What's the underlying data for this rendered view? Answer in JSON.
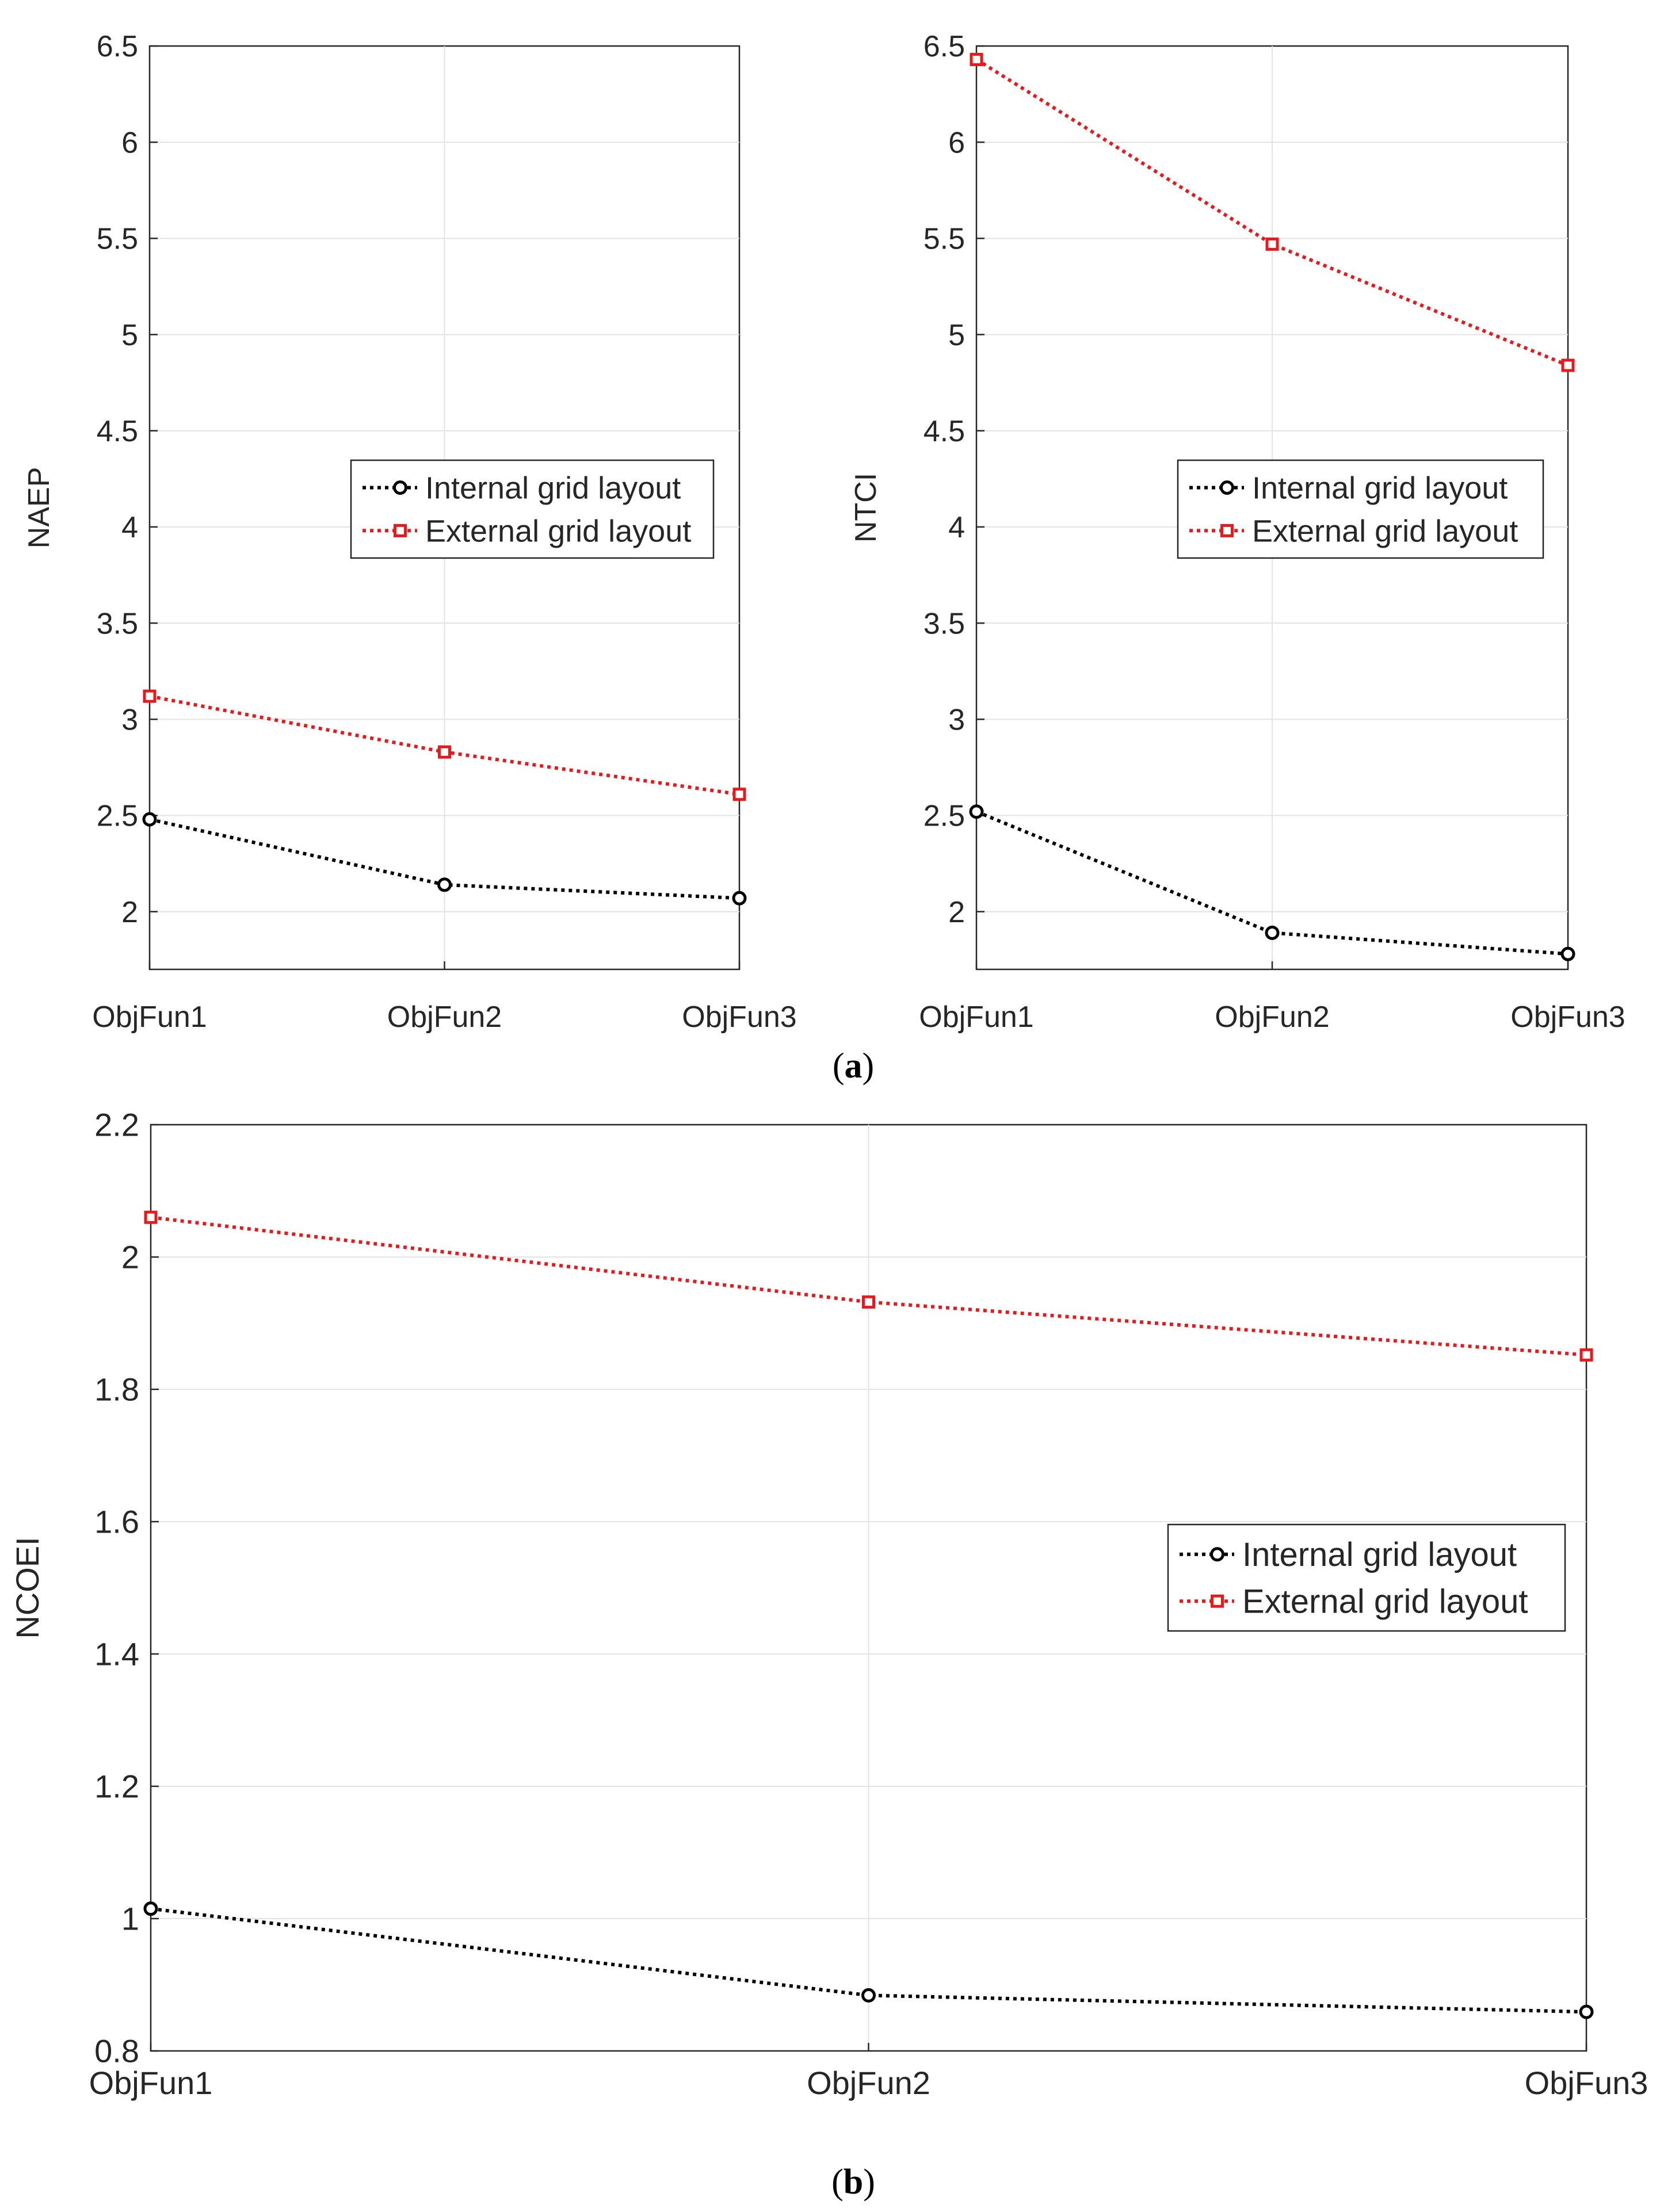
{
  "figure": {
    "captions": {
      "a_letter": "a",
      "b_letter": "b"
    },
    "legend_labels": [
      "Internal grid layout",
      "External grid layout"
    ],
    "series_colors": {
      "internal": "#000000",
      "external": "#e41a1c"
    }
  },
  "chart_data": [
    {
      "id": "naep",
      "type": "line",
      "categories": [
        "ObjFun1",
        "ObjFun2",
        "ObjFun3"
      ],
      "series": [
        {
          "name": "Internal grid layout",
          "values": [
            2.48,
            2.14,
            2.07
          ],
          "marker": "circle",
          "color": "#000000"
        },
        {
          "name": "External grid layout",
          "values": [
            3.12,
            2.83,
            2.61
          ],
          "marker": "square",
          "color": "#e41a1c"
        }
      ],
      "title": "",
      "xlabel": "",
      "ylabel": "NAEP",
      "ylim": [
        1.7,
        6.5
      ],
      "yticks": [
        "2",
        "2.5",
        "3",
        "3.5",
        "4",
        "4.5",
        "5",
        "5.5",
        "6",
        "6.5"
      ],
      "grid": true,
      "legend_position": "middle-right"
    },
    {
      "id": "ntci",
      "type": "line",
      "categories": [
        "ObjFun1",
        "ObjFun2",
        "ObjFun3"
      ],
      "series": [
        {
          "name": "Internal grid layout",
          "values": [
            2.52,
            1.89,
            1.78
          ],
          "marker": "circle",
          "color": "#000000"
        },
        {
          "name": "External grid layout",
          "values": [
            6.43,
            5.47,
            4.84
          ],
          "marker": "square",
          "color": "#e41a1c"
        }
      ],
      "title": "",
      "xlabel": "",
      "ylabel": "NTCI",
      "ylim": [
        1.7,
        6.5
      ],
      "yticks": [
        "2",
        "2.5",
        "3",
        "3.5",
        "4",
        "4.5",
        "5",
        "5.5",
        "6",
        "6.5"
      ],
      "grid": true,
      "legend_position": "middle-right"
    },
    {
      "id": "ncoei",
      "type": "line",
      "categories": [
        "ObjFun1",
        "ObjFun2",
        "ObjFun3"
      ],
      "series": [
        {
          "name": "Internal grid layout",
          "values": [
            1.015,
            0.884,
            0.859
          ],
          "marker": "circle",
          "color": "#000000"
        },
        {
          "name": "External grid layout",
          "values": [
            2.06,
            1.932,
            1.852
          ],
          "marker": "square",
          "color": "#e41a1c"
        }
      ],
      "title": "",
      "xlabel": "",
      "ylabel": "NCOEI",
      "ylim": [
        0.8,
        2.2
      ],
      "yticks": [
        "0.8",
        "1",
        "1.2",
        "1.4",
        "1.6",
        "1.8",
        "2",
        "2.2"
      ],
      "grid": true,
      "legend_position": "middle-right"
    }
  ]
}
